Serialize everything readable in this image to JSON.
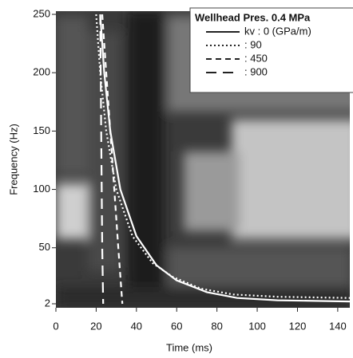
{
  "chart_data": {
    "type": "line",
    "x_label": "Time (ms)",
    "y_label": "Frequency (Hz)",
    "legend_title": "Wellhead Pres. 0.4 MPa",
    "legend": "upper right",
    "xlim": [
      0,
      146
    ],
    "xticks": [
      0,
      20,
      40,
      60,
      80,
      100,
      120,
      140
    ],
    "ylim": [
      2,
      250
    ],
    "yticks": [
      2,
      50,
      100,
      150,
      200,
      250
    ],
    "series": [
      {
        "name": "kv : 0 (GPa/m)",
        "color": "#ffffff",
        "linestyle": "solid",
        "x": [
          22,
          24,
          27,
          32,
          40,
          50,
          60,
          75,
          90,
          110,
          146
        ],
        "values": [
          250,
          200,
          150,
          100,
          60,
          35,
          22,
          12,
          7,
          5,
          4
        ]
      },
      {
        "name": ": 90",
        "color": "#ffffff",
        "linestyle": "dotted",
        "x": [
          20,
          22,
          25,
          30,
          38,
          48,
          58,
          72,
          88,
          110,
          146
        ],
        "values": [
          250,
          200,
          150,
          100,
          60,
          37,
          25,
          15,
          10,
          8,
          7
        ]
      },
      {
        "name": ": 450",
        "color": "#ffffff",
        "linestyle": "dashed",
        "x": [
          23,
          25,
          27,
          29,
          31,
          33
        ],
        "values": [
          250,
          200,
          150,
          100,
          50,
          2
        ]
      },
      {
        "name": ": 900",
        "color": "#ffffff",
        "linestyle": "longdash",
        "x": [
          22,
          22.5,
          23,
          23.5
        ],
        "values": [
          250,
          150,
          50,
          2
        ]
      }
    ]
  }
}
